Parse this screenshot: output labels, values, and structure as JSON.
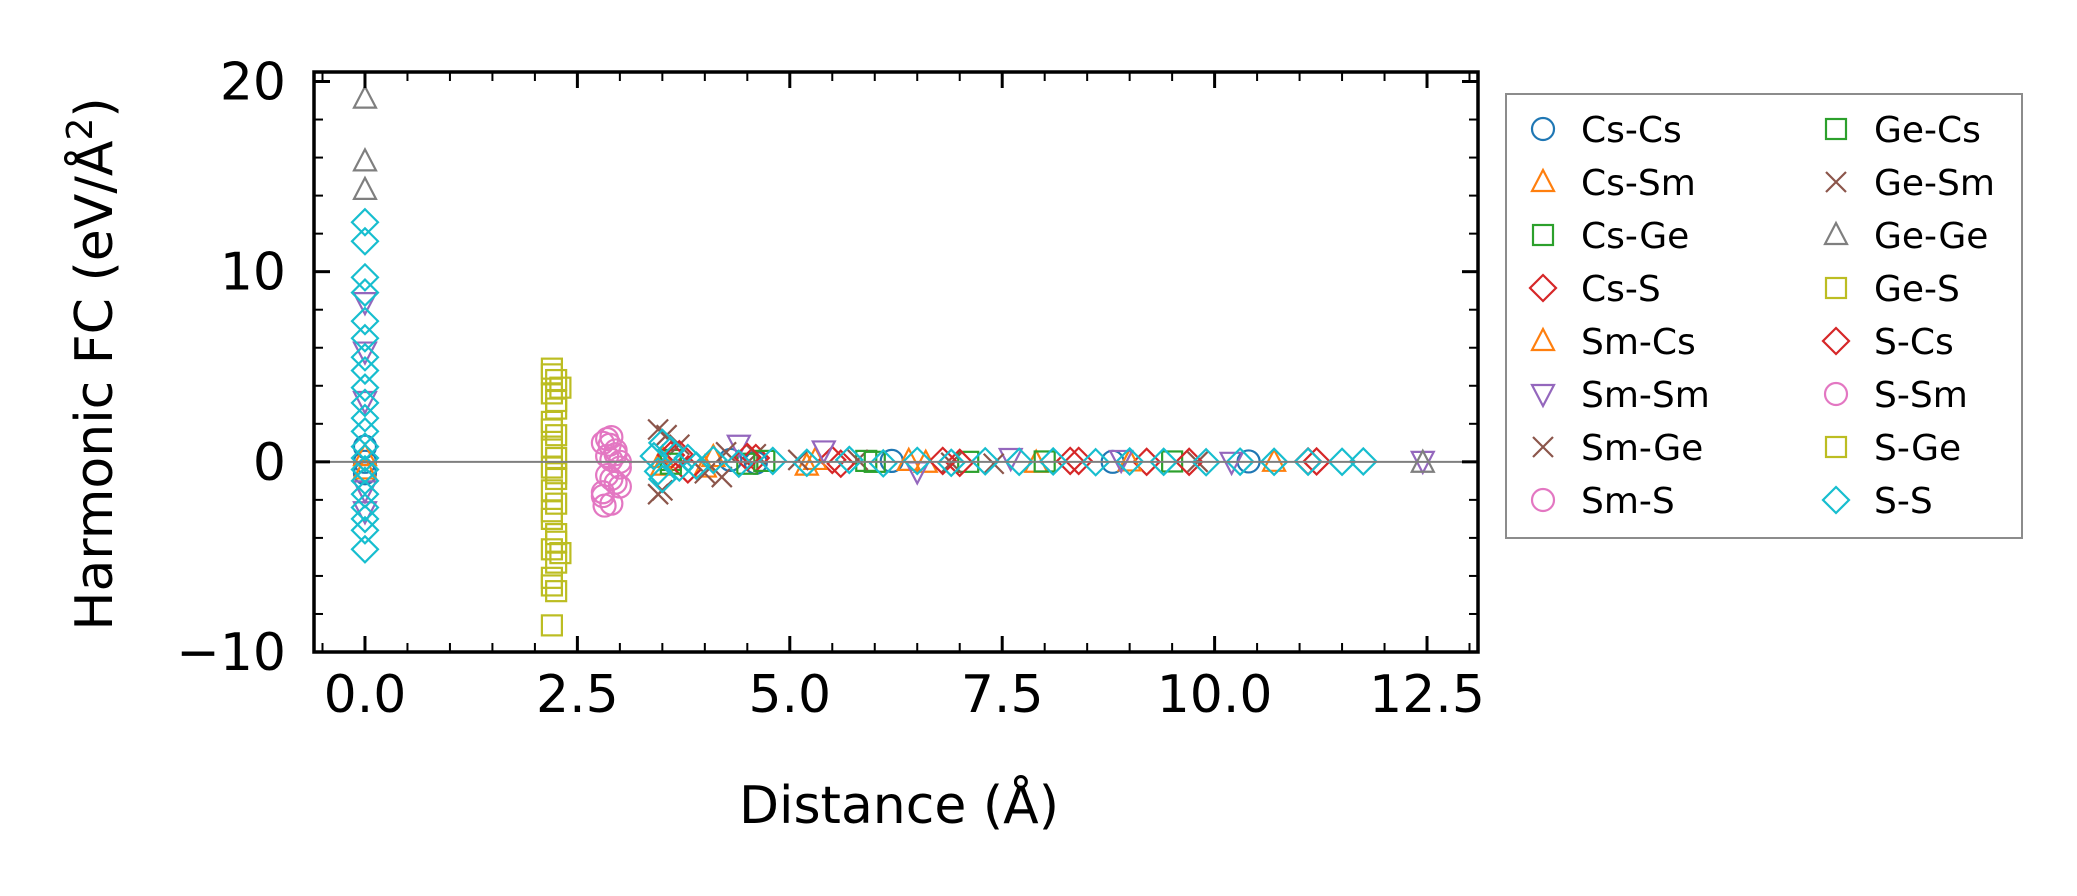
{
  "chart_data": {
    "type": "scatter",
    "xlabel": "Distance (Å)",
    "ylabel_main": "Harmonic FC (eV/Å",
    "ylabel_sup": "2",
    "ylabel_close": ")",
    "xlim": [
      -0.6,
      13.1
    ],
    "ylim": [
      -10,
      20.5
    ],
    "x_ticks": [
      0.0,
      2.5,
      5.0,
      7.5,
      10.0,
      12.5
    ],
    "x_tick_labels": [
      "0.0",
      "2.5",
      "5.0",
      "7.5",
      "10.0",
      "12.5"
    ],
    "y_ticks": [
      -10,
      0,
      10,
      20
    ],
    "y_tick_labels": [
      "−10",
      "0",
      "10",
      "20"
    ],
    "zero_line": 0,
    "legend_position": "outside-right",
    "series": [
      {
        "name": "Cs-Cs",
        "marker": "circle",
        "color": "#1f77b4",
        "points": [
          [
            0,
            0
          ],
          [
            0,
            0.8
          ],
          [
            0,
            -0.6
          ],
          [
            4.3,
            0.1
          ],
          [
            4.6,
            -0.05
          ],
          [
            6.2,
            0.05
          ],
          [
            8.8,
            0.0
          ],
          [
            10.4,
            0.02
          ]
        ]
      },
      {
        "name": "Cs-Sm",
        "marker": "triangle-up",
        "color": "#ff7f0e",
        "points": [
          [
            0,
            0.3
          ],
          [
            0,
            -0.4
          ],
          [
            3.5,
            0.2
          ],
          [
            4.0,
            -0.3
          ],
          [
            5.2,
            -0.2
          ],
          [
            6.4,
            0.05
          ],
          [
            7.9,
            -0.05
          ],
          [
            10.7,
            0.0
          ]
        ]
      },
      {
        "name": "Cs-Ge",
        "marker": "square",
        "color": "#2ca02c",
        "points": [
          [
            3.6,
            0.1
          ],
          [
            4.5,
            -0.1
          ],
          [
            5.9,
            0.05
          ],
          [
            7.1,
            0.0
          ],
          [
            9.5,
            0.02
          ]
        ]
      },
      {
        "name": "Cs-S",
        "marker": "diamond",
        "color": "#d62728",
        "points": [
          [
            3.6,
            0.35
          ],
          [
            3.8,
            -0.4
          ],
          [
            4.6,
            0.2
          ],
          [
            5.5,
            0.1
          ],
          [
            7.0,
            -0.05
          ],
          [
            8.4,
            0.05
          ],
          [
            9.2,
            0.0
          ],
          [
            11.1,
            0.02
          ]
        ]
      },
      {
        "name": "Sm-Cs",
        "marker": "triangle-up",
        "color": "#ff7f0e",
        "points": [
          [
            3.5,
            -0.2
          ],
          [
            4.1,
            0.25
          ],
          [
            5.3,
            0.1
          ],
          [
            6.6,
            -0.05
          ],
          [
            9.0,
            0.02
          ]
        ]
      },
      {
        "name": "Sm-Sm",
        "marker": "triangle-down",
        "color": "#9467bd",
        "points": [
          [
            0,
            8.4
          ],
          [
            0,
            5.8
          ],
          [
            0,
            3.2
          ],
          [
            0,
            -1.5
          ],
          [
            0,
            -2.6
          ],
          [
            4.4,
            0.9
          ],
          [
            5.4,
            0.6
          ],
          [
            6.5,
            -0.5
          ],
          [
            7.6,
            0.2
          ],
          [
            8.9,
            0.1
          ],
          [
            10.2,
            0.0
          ],
          [
            12.45,
            0.05
          ]
        ]
      },
      {
        "name": "Sm-Ge",
        "marker": "x",
        "color": "#8c564b",
        "points": [
          [
            3.45,
            1.7
          ],
          [
            3.45,
            -1.7
          ],
          [
            3.7,
            0.9
          ],
          [
            4.2,
            -0.8
          ],
          [
            4.6,
            0.4
          ],
          [
            5.8,
            0.1
          ],
          [
            7.4,
            -0.1
          ],
          [
            9.8,
            0.0
          ]
        ]
      },
      {
        "name": "Sm-S",
        "marker": "circle",
        "color": "#e377c2",
        "points": [
          [
            2.8,
            1.0
          ],
          [
            2.8,
            -1.6
          ],
          [
            2.85,
            0.3
          ],
          [
            2.85,
            -0.7
          ],
          [
            2.9,
            1.3
          ],
          [
            2.9,
            -2.2
          ],
          [
            2.95,
            0.6
          ],
          [
            2.95,
            -1.1
          ],
          [
            3.0,
            0.0
          ],
          [
            3.0,
            -0.3
          ],
          [
            2.82,
            -2.3
          ],
          [
            2.88,
            0.9
          ]
        ]
      },
      {
        "name": "Ge-Cs",
        "marker": "square",
        "color": "#2ca02c",
        "points": [
          [
            3.6,
            -0.1
          ],
          [
            4.7,
            0.05
          ],
          [
            6.0,
            0.0
          ],
          [
            8.0,
            0.02
          ]
        ]
      },
      {
        "name": "Ge-Sm",
        "marker": "x",
        "color": "#8c564b",
        "points": [
          [
            3.5,
            -1.5
          ],
          [
            3.55,
            1.4
          ],
          [
            4.0,
            -0.6
          ],
          [
            4.25,
            0.5
          ],
          [
            5.1,
            0.1
          ],
          [
            6.9,
            -0.05
          ]
        ]
      },
      {
        "name": "Ge-Ge",
        "marker": "triangle-up",
        "color": "#7f7f7f",
        "points": [
          [
            0,
            19.1
          ],
          [
            0,
            15.8
          ],
          [
            0,
            14.3
          ],
          [
            12.45,
            -0.05
          ]
        ]
      },
      {
        "name": "Ge-S",
        "marker": "square",
        "color": "#bcbd22",
        "points": [
          [
            2.2,
            4.9
          ],
          [
            2.25,
            4.3
          ],
          [
            2.2,
            3.6
          ],
          [
            2.25,
            2.8
          ],
          [
            2.2,
            2.1
          ],
          [
            2.25,
            1.4
          ],
          [
            2.2,
            0.8
          ],
          [
            2.25,
            0.2
          ],
          [
            2.2,
            -0.3
          ],
          [
            2.25,
            -0.9
          ],
          [
            2.2,
            -1.5
          ],
          [
            2.25,
            -2.2
          ],
          [
            2.2,
            -3.0
          ],
          [
            2.25,
            -3.8
          ],
          [
            2.2,
            -4.6
          ],
          [
            2.25,
            -5.3
          ],
          [
            2.2,
            -6.1
          ],
          [
            2.25,
            -6.8
          ],
          [
            2.2,
            -8.6
          ],
          [
            2.3,
            3.9
          ],
          [
            2.3,
            -4.8
          ]
        ]
      },
      {
        "name": "S-Cs",
        "marker": "diamond",
        "color": "#d62728",
        "points": [
          [
            3.7,
            0.4
          ],
          [
            4.5,
            0.25
          ],
          [
            5.6,
            -0.1
          ],
          [
            6.8,
            0.05
          ],
          [
            8.3,
            0.05
          ],
          [
            9.7,
            0.0
          ],
          [
            11.2,
            0.02
          ]
        ]
      },
      {
        "name": "S-Sm",
        "marker": "circle",
        "color": "#e377c2",
        "points": [
          [
            2.8,
            -1.8
          ],
          [
            2.85,
            1.2
          ],
          [
            2.9,
            -0.9
          ],
          [
            2.95,
            0.4
          ],
          [
            3.0,
            -1.3
          ],
          [
            2.9,
            0.1
          ]
        ]
      },
      {
        "name": "S-Ge",
        "marker": "square",
        "color": "#bcbd22",
        "points": [
          [
            2.2,
            4.6
          ],
          [
            2.25,
            3.2
          ],
          [
            2.2,
            1.7
          ],
          [
            2.25,
            -0.6
          ],
          [
            2.2,
            -2.6
          ],
          [
            2.25,
            -4.2
          ],
          [
            2.2,
            -6.5
          ]
        ]
      },
      {
        "name": "S-S",
        "marker": "diamond",
        "color": "#17becf",
        "points": [
          [
            0,
            12.6
          ],
          [
            0,
            11.6
          ],
          [
            0,
            9.7
          ],
          [
            0,
            8.9
          ],
          [
            0,
            7.4
          ],
          [
            0,
            6.5
          ],
          [
            0,
            5.5
          ],
          [
            0,
            4.8
          ],
          [
            0,
            3.9
          ],
          [
            0,
            3.1
          ],
          [
            0,
            2.3
          ],
          [
            0,
            1.6
          ],
          [
            0,
            0.8
          ],
          [
            0,
            0.2
          ],
          [
            0,
            -0.4
          ],
          [
            0,
            -1.0
          ],
          [
            0,
            -1.7
          ],
          [
            0,
            -2.4
          ],
          [
            0,
            -3.0
          ],
          [
            0,
            -3.6
          ],
          [
            0,
            -4.6
          ],
          [
            3.4,
            0.3
          ],
          [
            3.45,
            -0.5
          ],
          [
            3.5,
            1.0
          ],
          [
            3.5,
            -0.9
          ],
          [
            3.6,
            0.6
          ],
          [
            3.7,
            -0.3
          ],
          [
            3.8,
            0.2
          ],
          [
            3.9,
            -0.2
          ],
          [
            4.1,
            0.1
          ],
          [
            4.4,
            -0.1
          ],
          [
            4.8,
            0.05
          ],
          [
            5.2,
            -0.05
          ],
          [
            5.7,
            0.1
          ],
          [
            6.1,
            -0.08
          ],
          [
            6.5,
            0.05
          ],
          [
            6.9,
            -0.05
          ],
          [
            7.3,
            0.03
          ],
          [
            7.7,
            0.0
          ],
          [
            8.1,
            0.02
          ],
          [
            8.6,
            -0.02
          ],
          [
            9.0,
            0.02
          ],
          [
            9.4,
            0.0
          ],
          [
            9.9,
            -0.02
          ],
          [
            10.3,
            0.01
          ],
          [
            10.7,
            0.0
          ],
          [
            11.1,
            0.01
          ],
          [
            11.5,
            0.0
          ],
          [
            11.75,
            0.02
          ]
        ]
      }
    ]
  }
}
